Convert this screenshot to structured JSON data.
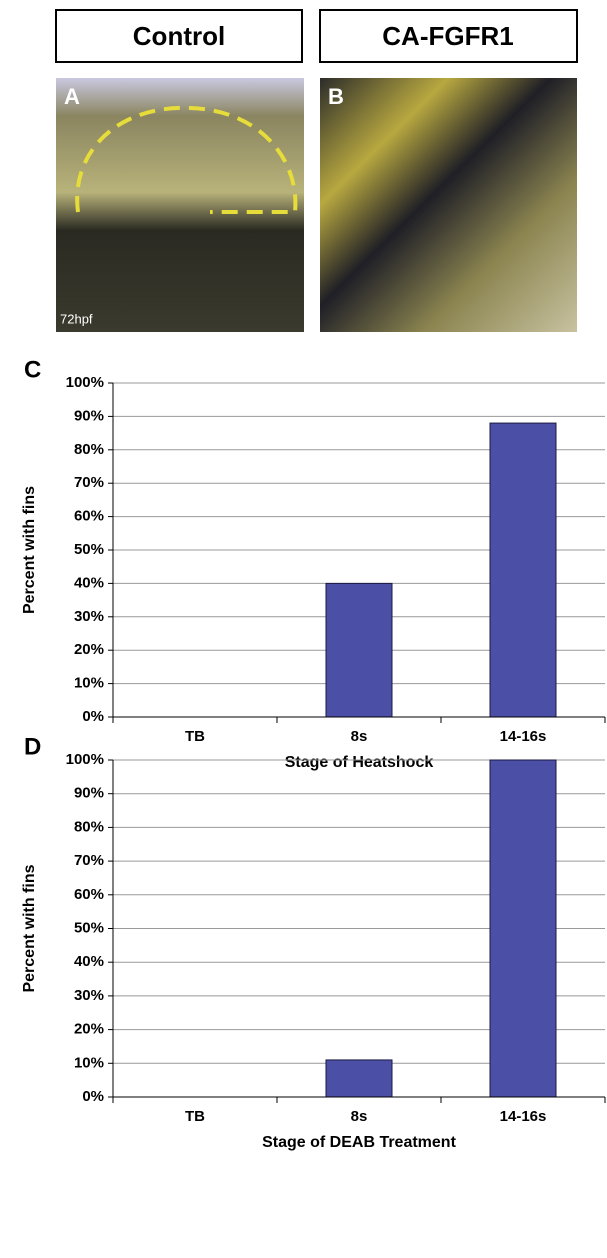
{
  "panels": [
    {
      "header": "Control",
      "letter": "A",
      "stage": "72hpf"
    },
    {
      "header": "CA-FGFR1",
      "letter": "B"
    }
  ],
  "chart_data": [
    {
      "type": "bar",
      "panel": "C",
      "categories": [
        "TB",
        "8s",
        "14-16s"
      ],
      "values": [
        0,
        40,
        88
      ],
      "color": "#4b4fa6",
      "xlabel": "Stage of Heatshock",
      "ylabel": "Percent with fins",
      "ylim": [
        0,
        100
      ],
      "yticks": [
        {
          "value": 0,
          "label": "0%"
        },
        {
          "value": 10,
          "label": "10%"
        },
        {
          "value": 20,
          "label": "20%"
        },
        {
          "value": 30,
          "label": "30%"
        },
        {
          "value": 40,
          "label": "40%"
        },
        {
          "value": 50,
          "label": "50%"
        },
        {
          "value": 60,
          "label": "60%"
        },
        {
          "value": 70,
          "label": "70%"
        },
        {
          "value": 80,
          "label": "80%"
        },
        {
          "value": 90,
          "label": "90%"
        },
        {
          "value": 100,
          "label": "100%"
        }
      ],
      "grid": true
    },
    {
      "type": "bar",
      "panel": "D",
      "categories": [
        "TB",
        "8s",
        "14-16s"
      ],
      "values": [
        0,
        11,
        100
      ],
      "color": "#4b4fa6",
      "xlabel": "Stage of DEAB Treatment",
      "ylabel": "Percent with fins",
      "ylim": [
        0,
        100
      ],
      "yticks": [
        {
          "value": 0,
          "label": "0%"
        },
        {
          "value": 10,
          "label": "10%"
        },
        {
          "value": 20,
          "label": "20%"
        },
        {
          "value": 30,
          "label": "30%"
        },
        {
          "value": 40,
          "label": "40%"
        },
        {
          "value": 50,
          "label": "50%"
        },
        {
          "value": 60,
          "label": "60%"
        },
        {
          "value": 70,
          "label": "70%"
        },
        {
          "value": 80,
          "label": "80%"
        },
        {
          "value": 90,
          "label": "90%"
        },
        {
          "value": 100,
          "label": "100%"
        }
      ],
      "grid": true
    }
  ]
}
